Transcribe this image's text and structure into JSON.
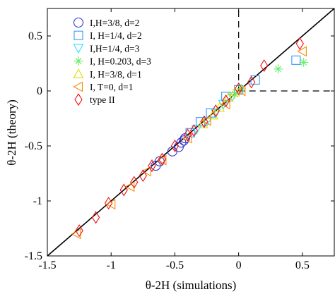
{
  "chart_data": {
    "type": "scatter",
    "xlabel": "θ-2H (simulations)",
    "ylabel": "θ-2H (theory)",
    "xlim": [
      -1.5,
      0.75
    ],
    "ylim": [
      -1.5,
      0.75
    ],
    "xticks": [
      -1.5,
      -1,
      -0.5,
      0,
      0.5
    ],
    "yticks": [
      -1.5,
      -1,
      -0.5,
      0,
      0.5
    ],
    "grid": false,
    "legend_position": "top-left",
    "reference_line": {
      "slope": 1,
      "intercept": 0,
      "color": "#000000"
    },
    "dashed_lines": [
      {
        "orientation": "vertical",
        "x": 0,
        "y_from": 0,
        "y_to": 0.75
      },
      {
        "orientation": "horizontal",
        "y": 0,
        "x_from": 0,
        "x_to": 0.75
      }
    ],
    "series": [
      {
        "name": "I,H=3/8, d=2",
        "marker": "circle",
        "color": "#3333cc",
        "points": [
          [
            -0.65,
            -0.68
          ],
          [
            -0.62,
            -0.64
          ],
          [
            -0.52,
            -0.55
          ],
          [
            -0.47,
            -0.51
          ],
          [
            -0.45,
            -0.47
          ],
          [
            -0.43,
            -0.45
          ],
          [
            -0.42,
            -0.43
          ]
        ]
      },
      {
        "name": "I, H=1/4, d=2",
        "marker": "square",
        "color": "#3399ff",
        "points": [
          [
            -0.38,
            -0.38
          ],
          [
            -0.3,
            -0.28
          ],
          [
            -0.22,
            -0.2
          ],
          [
            -0.1,
            -0.05
          ],
          [
            0.0,
            0.01
          ],
          [
            0.13,
            0.1
          ],
          [
            0.45,
            0.28
          ]
        ]
      },
      {
        "name": "I,H=1/4, d=3",
        "marker": "triangle-down",
        "color": "#33ddff",
        "points": [
          [
            -0.33,
            -0.35
          ],
          [
            -0.25,
            -0.28
          ],
          [
            -0.18,
            -0.2
          ],
          [
            -0.12,
            -0.12
          ],
          [
            -0.05,
            -0.05
          ]
        ]
      },
      {
        "name": "I, H=0.203, d=3",
        "marker": "asterisk",
        "color": "#66ee66",
        "points": [
          [
            -0.03,
            -0.03
          ],
          [
            0.02,
            0.02
          ],
          [
            0.31,
            0.2
          ],
          [
            0.51,
            0.26
          ]
        ]
      },
      {
        "name": "I, H=3/8, d=1",
        "marker": "triangle-up",
        "color": "#dddd00",
        "points": [
          [
            -0.28,
            -0.3
          ],
          [
            -0.2,
            -0.22
          ],
          [
            -0.15,
            -0.15
          ],
          [
            -0.08,
            -0.06
          ],
          [
            -0.03,
            -0.01
          ]
        ]
      },
      {
        "name": "I, T=0, d=1",
        "marker": "triangle-left",
        "color": "#ff8800",
        "points": [
          [
            -1.27,
            -1.3
          ],
          [
            -1.0,
            -1.03
          ],
          [
            -0.85,
            -0.87
          ],
          [
            -0.72,
            -0.73
          ],
          [
            -0.6,
            -0.63
          ],
          [
            -0.4,
            -0.43
          ],
          [
            -0.25,
            -0.27
          ],
          [
            -0.1,
            -0.12
          ],
          [
            0.02,
            0.0
          ],
          [
            0.5,
            0.36
          ]
        ]
      },
      {
        "name": "type II",
        "marker": "diamond",
        "color": "#ee1111",
        "points": [
          [
            -1.25,
            -1.27
          ],
          [
            -1.12,
            -1.15
          ],
          [
            -1.02,
            -1.02
          ],
          [
            -0.9,
            -0.9
          ],
          [
            -0.82,
            -0.83
          ],
          [
            -0.75,
            -0.77
          ],
          [
            -0.68,
            -0.68
          ],
          [
            -0.6,
            -0.62
          ],
          [
            -0.5,
            -0.5
          ],
          [
            -0.4,
            -0.4
          ],
          [
            -0.35,
            -0.36
          ],
          [
            -0.27,
            -0.28
          ],
          [
            -0.18,
            -0.18
          ],
          [
            -0.1,
            -0.09
          ],
          [
            0.0,
            0.02
          ],
          [
            0.1,
            0.08
          ],
          [
            0.2,
            0.23
          ],
          [
            0.48,
            0.43
          ]
        ]
      }
    ]
  }
}
